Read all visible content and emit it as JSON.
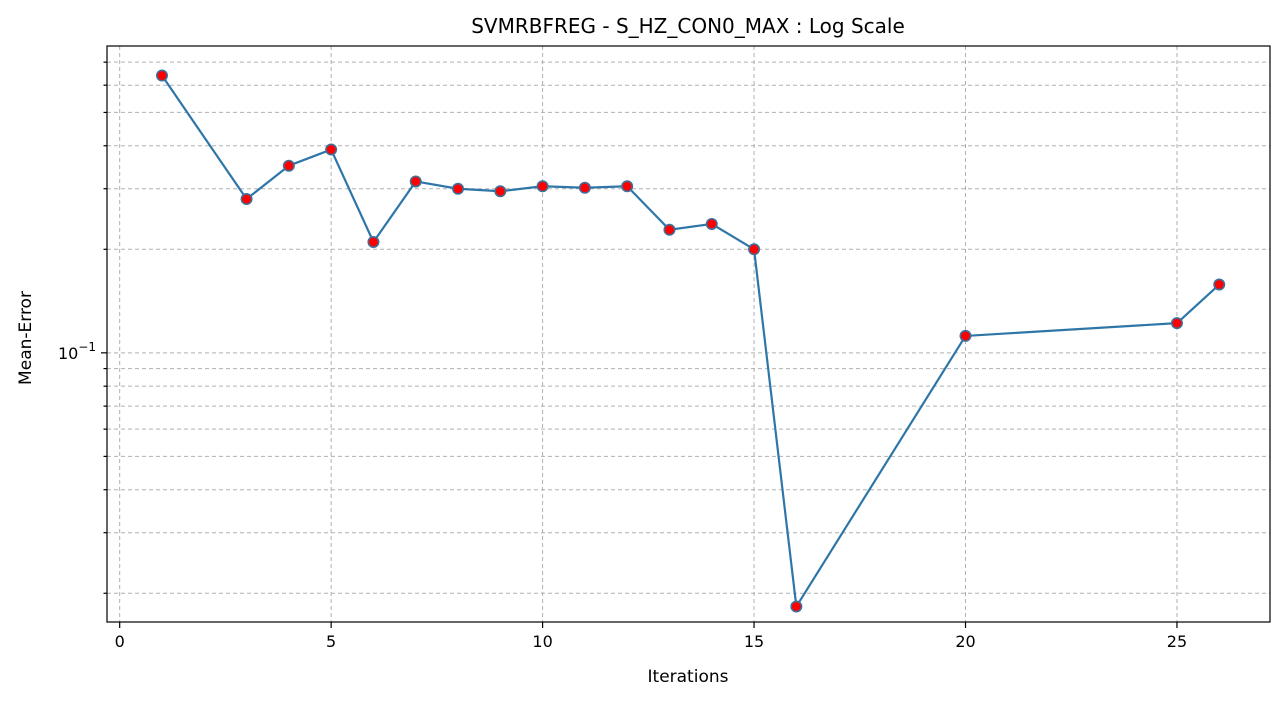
{
  "chart_data": {
    "type": "line",
    "title": "SVMRBFREG - S_HZ_CON0_MAX : Log Scale",
    "xlabel": "Iterations",
    "ylabel": "Mean-Error",
    "y_scale": "log",
    "xlim": [
      -0.3,
      27.2
    ],
    "ylim": [
      0.0165,
      0.78
    ],
    "x_ticks": [
      0,
      5,
      10,
      15,
      20,
      25
    ],
    "x_tick_labels": [
      "0",
      "5",
      "10",
      "15",
      "20",
      "25"
    ],
    "y_major_ticks": [
      0.1
    ],
    "y_major_tick_labels": [
      "10",
      "−1"
    ],
    "y_minor_ticks": [
      0.02,
      0.03,
      0.04,
      0.05,
      0.06,
      0.07,
      0.08,
      0.09,
      0.2,
      0.3,
      0.4,
      0.5,
      0.6,
      0.7
    ],
    "grid": true,
    "series": [
      {
        "color": "#2e76a8",
        "marker_fill": "#ff0000",
        "marker_edge": "#3f6f9a",
        "x": [
          1,
          3,
          4,
          5,
          6,
          7,
          8,
          9,
          10,
          11,
          12,
          13,
          14,
          15,
          16,
          20,
          25,
          26
        ],
        "y": [
          0.64,
          0.28,
          0.35,
          0.39,
          0.21,
          0.315,
          0.3,
          0.295,
          0.305,
          0.302,
          0.305,
          0.228,
          0.237,
          0.2,
          0.0183,
          0.112,
          0.122,
          0.158
        ]
      }
    ]
  }
}
